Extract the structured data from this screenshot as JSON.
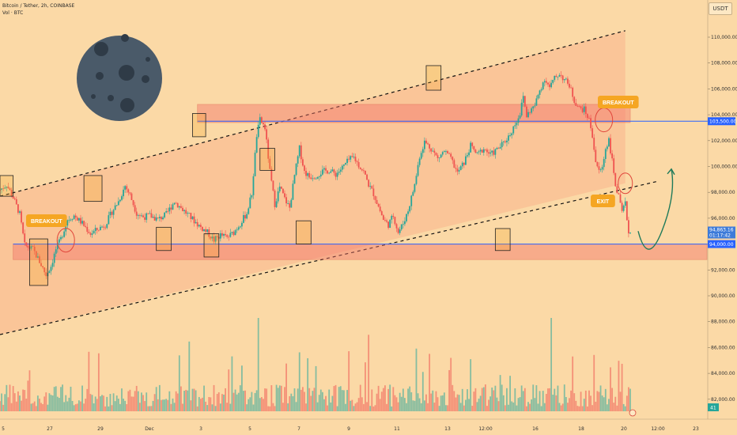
{
  "header": {
    "title": "Bitcoin / Tether, 2h, COINBASE",
    "subtitle": "Vol · BTC"
  },
  "currency_button": "USDT",
  "colors": {
    "background": "#fbd9a6",
    "up_candle": "#26a69a",
    "down_candle": "#ef5350",
    "zone_fill": "#f4756a",
    "channel_fill": "#f9b58c",
    "label_orange": "#f5a623",
    "price_line_blue": "#2962ff",
    "arrow_green": "#1e7a5a"
  },
  "chart_data": {
    "type": "candlestick",
    "x_ticks": [
      "5",
      "27",
      "29",
      "Dec",
      "3",
      "5",
      "7",
      "9",
      "11",
      "13",
      "12:00",
      "16",
      "18",
      "20",
      "12:00",
      "23"
    ],
    "y_ticks": [
      "110,000.00",
      "108,000.00",
      "106,000.00",
      "104,000.00",
      "102,000.00",
      "100,000.00",
      "98,000.00",
      "96,000.00",
      "94,000.00",
      "92,000.00",
      "90,000.00",
      "88,000.00",
      "86,000.00",
      "84,000.00",
      "82,000.00"
    ],
    "ylim": [
      79800,
      111800
    ],
    "price_markers": [
      {
        "label": "103,500.00",
        "value": 103500
      },
      {
        "label": "94,000.00",
        "value": 94000
      }
    ],
    "last_price": {
      "price": "94,863.16",
      "countdown": "01:17:42"
    },
    "volume_badge": "41",
    "annotations": [
      {
        "text": "BREAKOUT",
        "x_index": 17,
        "price": 95800
      },
      {
        "text": "BREAKOUT",
        "x_index": 370,
        "price": 104700
      },
      {
        "text": "EXIT",
        "x_index": 365,
        "price": 97100
      }
    ],
    "support_zone": {
      "top": 94000,
      "bottom": 92800
    },
    "resistance_zone": {
      "top": 104800,
      "bottom": 103400
    },
    "channel": {
      "upper": [
        [
          0,
          97700
        ],
        [
          380,
          110500
        ]
      ],
      "lower": [
        [
          0,
          87000
        ],
        [
          380,
          98700
        ]
      ]
    },
    "projection": [
      [
        0,
        95000
      ],
      [
        14,
        92900
      ],
      [
        30,
        95000
      ],
      [
        42,
        99800
      ]
    ],
    "keypoints": [
      [
        0,
        98200
      ],
      [
        4,
        98600
      ],
      [
        8,
        97600
      ],
      [
        12,
        96300
      ],
      [
        15,
        93900
      ],
      [
        20,
        93600
      ],
      [
        25,
        92400
      ],
      [
        28,
        91600
      ],
      [
        31,
        92300
      ],
      [
        34,
        93600
      ],
      [
        37,
        94400
      ],
      [
        41,
        95900
      ],
      [
        45,
        96200
      ],
      [
        50,
        95600
      ],
      [
        55,
        94800
      ],
      [
        60,
        95200
      ],
      [
        64,
        95500
      ],
      [
        68,
        96500
      ],
      [
        72,
        97300
      ],
      [
        76,
        98500
      ],
      [
        79,
        97800
      ],
      [
        83,
        96400
      ],
      [
        87,
        96100
      ],
      [
        91,
        96200
      ],
      [
        96,
        95900
      ],
      [
        101,
        96300
      ],
      [
        106,
        97300
      ],
      [
        110,
        96800
      ],
      [
        114,
        96300
      ],
      [
        118,
        95800
      ],
      [
        122,
        95300
      ],
      [
        126,
        94900
      ],
      [
        130,
        94300
      ],
      [
        134,
        94700
      ],
      [
        138,
        94500
      ],
      [
        142,
        94900
      ],
      [
        146,
        95600
      ],
      [
        150,
        96400
      ],
      [
        153,
        97900
      ],
      [
        156,
        102400
      ],
      [
        158,
        103600
      ],
      [
        161,
        103000
      ],
      [
        164,
        99600
      ],
      [
        167,
        97100
      ],
      [
        170,
        98400
      ],
      [
        173,
        97500
      ],
      [
        176,
        96800
      ],
      [
        179,
        99300
      ],
      [
        182,
        101400
      ],
      [
        185,
        99600
      ],
      [
        188,
        99200
      ],
      [
        192,
        99300
      ],
      [
        196,
        99600
      ],
      [
        200,
        99700
      ],
      [
        204,
        99400
      ],
      [
        208,
        99900
      ],
      [
        212,
        100500
      ],
      [
        215,
        100700
      ],
      [
        218,
        100100
      ],
      [
        221,
        99600
      ],
      [
        224,
        98600
      ],
      [
        227,
        97900
      ],
      [
        230,
        96900
      ],
      [
        233,
        95900
      ],
      [
        236,
        95500
      ],
      [
        239,
        96200
      ],
      [
        242,
        94900
      ],
      [
        245,
        95600
      ],
      [
        248,
        96600
      ],
      [
        252,
        98600
      ],
      [
        255,
        100800
      ],
      [
        258,
        101900
      ],
      [
        262,
        101400
      ],
      [
        266,
        100600
      ],
      [
        270,
        101200
      ],
      [
        274,
        100600
      ],
      [
        278,
        99500
      ],
      [
        282,
        100300
      ],
      [
        286,
        101600
      ],
      [
        290,
        100900
      ],
      [
        294,
        101400
      ],
      [
        298,
        100900
      ],
      [
        302,
        101300
      ],
      [
        306,
        101800
      ],
      [
        310,
        102500
      ],
      [
        313,
        103300
      ],
      [
        316,
        104100
      ],
      [
        318,
        105400
      ],
      [
        320,
        103900
      ],
      [
        322,
        104300
      ],
      [
        325,
        104700
      ],
      [
        328,
        105900
      ],
      [
        331,
        106800
      ],
      [
        334,
        106100
      ],
      [
        337,
        106800
      ],
      [
        340,
        107200
      ],
      [
        343,
        106700
      ],
      [
        346,
        106300
      ],
      [
        349,
        105100
      ],
      [
        352,
        104500
      ],
      [
        355,
        104400
      ],
      [
        358,
        103600
      ],
      [
        360,
        102400
      ],
      [
        362,
        100400
      ],
      [
        364,
        99600
      ],
      [
        366,
        99900
      ],
      [
        368,
        101400
      ],
      [
        370,
        102100
      ],
      [
        372,
        100400
      ],
      [
        374,
        98600
      ],
      [
        376,
        97600
      ],
      [
        378,
        96400
      ],
      [
        380,
        97100
      ],
      [
        382,
        94900
      ],
      [
        383,
        94860
      ]
    ],
    "highlight_boxes": [
      {
        "price_top": 99300,
        "price_bottom": 97700,
        "i0": 0,
        "i1": 8
      },
      {
        "price_top": 94400,
        "price_bottom": 90800,
        "i0": 18,
        "i1": 29
      },
      {
        "price_top": 99300,
        "price_bottom": 97300,
        "i0": 51,
        "i1": 62
      },
      {
        "price_top": 95300,
        "price_bottom": 93500,
        "i0": 95,
        "i1": 104
      },
      {
        "price_top": 104100,
        "price_bottom": 102300,
        "i0": 117,
        "i1": 125
      },
      {
        "price_top": 94800,
        "price_bottom": 93000,
        "i0": 124,
        "i1": 133
      },
      {
        "price_top": 101400,
        "price_bottom": 99700,
        "i0": 158,
        "i1": 167
      },
      {
        "price_top": 95800,
        "price_bottom": 94000,
        "i0": 180,
        "i1": 189
      },
      {
        "price_top": 107800,
        "price_bottom": 105900,
        "i0": 259,
        "i1": 268
      },
      {
        "price_top": 95200,
        "price_bottom": 93500,
        "i0": 301,
        "i1": 310
      }
    ]
  }
}
